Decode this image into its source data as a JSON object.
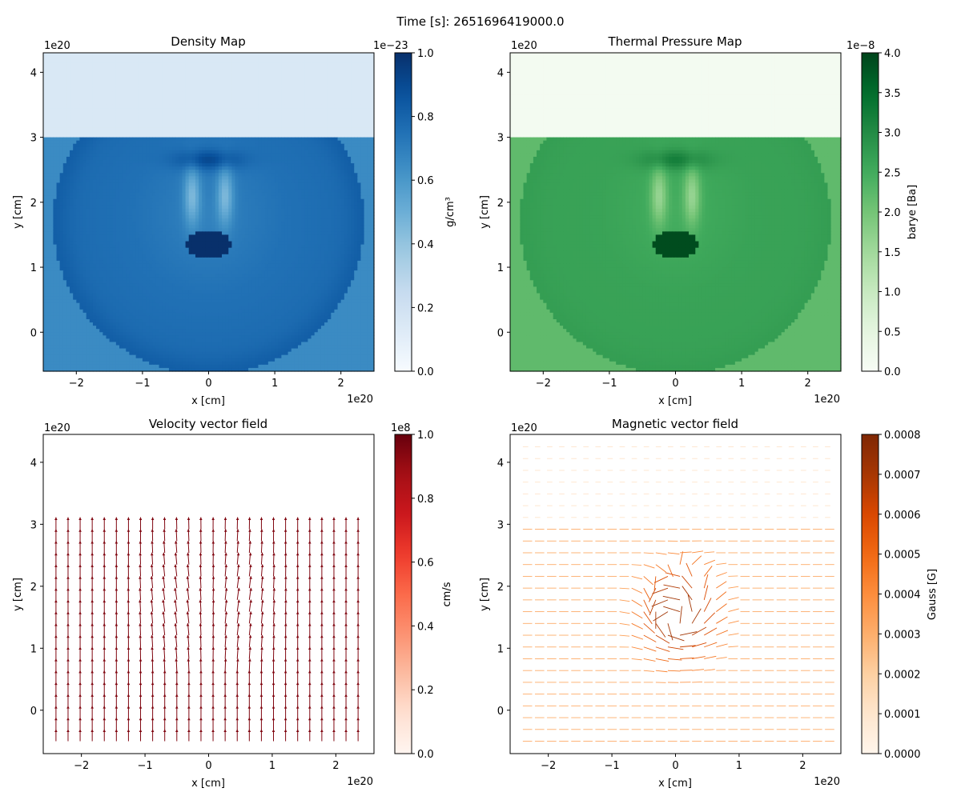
{
  "figure": {
    "suptitle": "Time [s]: 2651696419000.0"
  },
  "chart_data": [
    {
      "type": "heatmap",
      "title": "Density Map",
      "xlabel": "x [cm]",
      "ylabel": "y [cm]",
      "xlim": [
        -2.5,
        2.5
      ],
      "ylim": [
        -0.6,
        4.3
      ],
      "xticks": [
        -2,
        -1,
        0,
        1,
        2
      ],
      "yticks": [
        0,
        1,
        2,
        3,
        4
      ],
      "x_offset": "1e20",
      "y_offset": "1e20",
      "colormap": "Blues",
      "colorbar": {
        "label": "g/cm³",
        "range": [
          0.0,
          1.0
        ],
        "ticks": [
          0.0,
          0.2,
          0.4,
          0.6,
          0.8,
          1.0
        ],
        "tick_labels": [
          "0.0",
          "0.2",
          "0.4",
          "0.6",
          "0.8",
          "1.0"
        ],
        "offset": "1e−23"
      },
      "field": {
        "interface_y": 3.02,
        "upper_value": 0.15,
        "ambient_value": 0.65,
        "shell_value": 0.72,
        "core_value": 1.0,
        "shell_center": [
          0.0,
          1.7
        ],
        "shell_radius": 2.35
      }
    },
    {
      "type": "heatmap",
      "title": "Thermal Pressure Map",
      "xlabel": "x [cm]",
      "ylabel": "y [cm]",
      "xlim": [
        -2.5,
        2.5
      ],
      "ylim": [
        -0.6,
        4.3
      ],
      "xticks": [
        -2,
        -1,
        0,
        1,
        2
      ],
      "yticks": [
        0,
        1,
        2,
        3,
        4
      ],
      "x_offset": "1e20",
      "y_offset": "1e20",
      "colormap": "Greens",
      "colorbar": {
        "label": "barye [Ba]",
        "range": [
          0.0,
          4.0
        ],
        "ticks": [
          0.0,
          0.5,
          1.0,
          1.5,
          2.0,
          2.5,
          3.0,
          3.5,
          4.0
        ],
        "tick_labels": [
          "0.0",
          "0.5",
          "1.0",
          "1.5",
          "2.0",
          "2.5",
          "3.0",
          "3.5",
          "4.0"
        ],
        "offset": "1e−8"
      },
      "field": {
        "interface_y": 3.02,
        "upper_value": 0.1,
        "ambient_value": 2.2,
        "shell_value": 2.6,
        "core_value": 3.9,
        "shell_center": [
          0.0,
          1.7
        ],
        "shell_radius": 2.35
      }
    },
    {
      "type": "quiver",
      "title": "Velocity vector field",
      "xlabel": "x [cm]",
      "ylabel": "y [cm]",
      "xlim": [
        -2.6,
        2.6
      ],
      "ylim": [
        -0.7,
        4.45
      ],
      "xticks": [
        -2,
        -1,
        0,
        1,
        2
      ],
      "yticks": [
        0,
        1,
        2,
        3,
        4
      ],
      "x_offset": "1e20",
      "y_offset": "1e20",
      "colormap": "Reds",
      "colorbar": {
        "label": "cm/s",
        "range": [
          0.0,
          1.0
        ],
        "ticks": [
          0.0,
          0.2,
          0.4,
          0.6,
          0.8,
          1.0
        ],
        "tick_labels": [
          "0.0",
          "0.2",
          "0.4",
          "0.6",
          "0.8",
          "1.0"
        ],
        "offset": "1e8"
      },
      "grid": {
        "x_start": -2.4,
        "x_end": 2.4,
        "x_step": 0.19,
        "y_start": -0.5,
        "y_end": 3.0,
        "y_step": 0.19
      },
      "magnitude": 0.95
    },
    {
      "type": "quiver",
      "title": "Magnetic vector field",
      "xlabel": "x [cm]",
      "ylabel": "y [cm]",
      "xlim": [
        -2.6,
        2.6
      ],
      "ylim": [
        -0.7,
        4.45
      ],
      "xticks": [
        -2,
        -1,
        0,
        1,
        2
      ],
      "yticks": [
        0,
        1,
        2,
        3,
        4
      ],
      "x_offset": "1e20",
      "y_offset": "1e20",
      "colormap": "Oranges",
      "colorbar": {
        "label": "Gauss [G]",
        "range": [
          0.0,
          0.0008
        ],
        "ticks": [
          0.0,
          0.0001,
          0.0002,
          0.0003,
          0.0004,
          0.0005,
          0.0006,
          0.0007,
          0.0008
        ],
        "tick_labels": [
          "0.0000",
          "0.0001",
          "0.0002",
          "0.0003",
          "0.0004",
          "0.0005",
          "0.0006",
          "0.0007",
          "0.0008"
        ],
        "offset": ""
      },
      "grid": {
        "x_start": -2.4,
        "x_end": 2.4,
        "x_step": 0.19,
        "y_start": -0.5,
        "y_end": 4.4,
        "y_step": 0.19
      },
      "base_magnitude": 0.00025,
      "peak_magnitude": 0.0007
    }
  ]
}
